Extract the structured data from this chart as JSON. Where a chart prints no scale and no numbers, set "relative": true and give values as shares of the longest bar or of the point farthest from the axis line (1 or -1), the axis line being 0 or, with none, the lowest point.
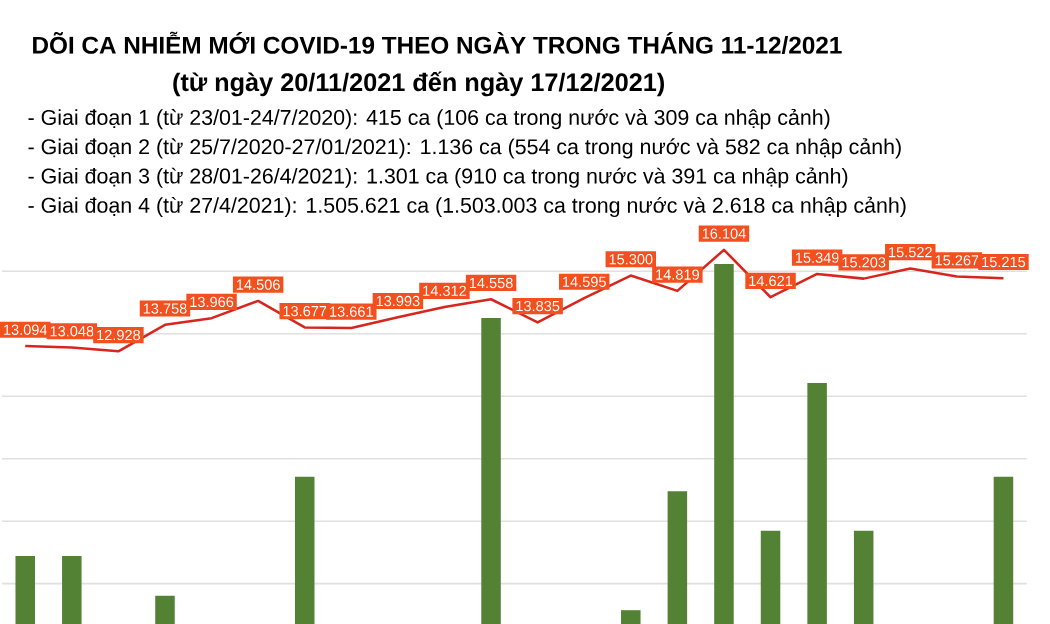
{
  "chart_data": [
    {
      "type": "line",
      "title": "DÕI CA NHIỄM MỚI COVID-19 THEO NGÀY TRONG THÁNG 11-12/2021",
      "subtitle": "(từ ngày 20/11/2021 đến ngày 17/12/2021)",
      "annotations": [
        "- Giai đoạn 1 (từ 23/01-24/7/2020): 415 ca (106 ca trong nước và 309 ca nhập cảnh)",
        "- Giai đoạn 2 (từ 25/7/2020-27/01/2021): 1.136 ca (554 ca trong nước và 582 ca nhập cảnh)",
        "- Giai đoạn 3 (từ 28/01-26/4/2021): 1.301 ca (910 ca trong nước và 391 ca nhập cảnh)",
        "- Giai đoạn 4 (từ 27/4/2021): 1.505.621 ca (1.503.003 ca trong nước và 2.618 ca nhập cảnh)"
      ],
      "categories": [
        null,
        null,
        null,
        null,
        null,
        null,
        null,
        null,
        null,
        null,
        null,
        null,
        null,
        null,
        null,
        null,
        null,
        null,
        null,
        null,
        null,
        null
      ],
      "series": [
        {
          "color": "#d7261e",
          "values": [
            13.094,
            13.048,
            12.928,
            13.758,
            13.966,
            14.506,
            13.677,
            13.661,
            13.993,
            14.312,
            14.558,
            13.835,
            14.595,
            15.3,
            14.819,
            16.104,
            14.621,
            15.349,
            15.203,
            15.522,
            15.267,
            15.215
          ],
          "value_labels": [
            "13.094",
            "13.048",
            "12.928",
            "13.758",
            "13.966",
            "14.506",
            "13.677",
            "13.661",
            "13.993",
            "14.312",
            "14.558",
            "13.835",
            "14.595",
            "15.300",
            "14.819",
            "16.104",
            "14.621",
            "15.349",
            "15.203",
            "15.522",
            "15.267",
            "15.215"
          ]
        }
      ]
    },
    {
      "type": "bar",
      "relative": true,
      "grid": true,
      "categories": [
        null,
        null,
        null,
        null,
        null,
        null,
        null,
        null,
        null,
        null,
        null,
        null,
        null,
        null,
        null,
        null,
        null,
        null,
        null,
        null,
        null,
        null
      ],
      "series": [
        {
          "color": "#548235",
          "values": [
            0.19,
            0.19,
            null,
            0.08,
            null,
            null,
            0.41,
            null,
            null,
            null,
            0.85,
            null,
            null,
            0.04,
            0.37,
            1,
            0.26,
            0.67,
            0.26,
            null,
            null,
            0.41
          ]
        }
      ]
    }
  ]
}
